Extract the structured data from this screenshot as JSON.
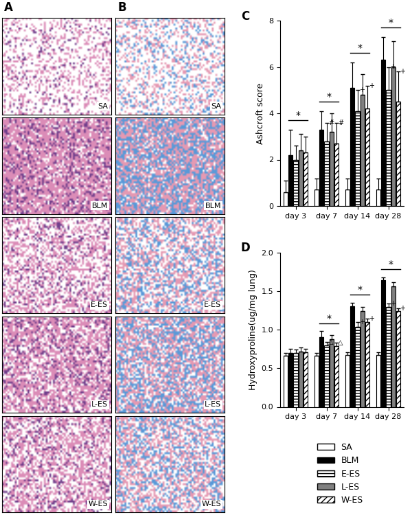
{
  "image_panels": [
    {
      "panel": "A",
      "rows": [
        "SA",
        "BLM",
        "E-ES",
        "L-ES",
        "W-ES"
      ]
    },
    {
      "panel": "B",
      "rows": [
        "SA",
        "BLM",
        "E-ES",
        "L-ES",
        "W-ES"
      ]
    }
  ],
  "chart_data": [
    {
      "type": "bar",
      "panel": "C",
      "ylabel": "Ashcroft score",
      "categories": [
        "day 3",
        "day 7",
        "day 14",
        "day 28"
      ],
      "ylim": [
        0,
        8
      ],
      "yticks": [
        0,
        2,
        4,
        6,
        8
      ],
      "series": [
        {
          "name": "SA",
          "color": "#ffffff",
          "values": [
            0.6,
            0.7,
            0.7,
            0.7
          ],
          "errors": [
            0.5,
            0.5,
            0.5,
            0.5
          ]
        },
        {
          "name": "BLM",
          "color": "#000000",
          "values": [
            2.2,
            3.3,
            5.1,
            6.3
          ],
          "errors": [
            1.1,
            0.8,
            1.1,
            1.0
          ]
        },
        {
          "name": "E-ES",
          "color": "#ffffff",
          "values": [
            2.0,
            2.8,
            4.1,
            5.0
          ],
          "errors": [
            0.6,
            0.8,
            0.9,
            1.0
          ]
        },
        {
          "name": "L-ES",
          "color": "#808080",
          "values": [
            2.4,
            3.2,
            4.8,
            6.0
          ],
          "errors": [
            0.7,
            0.8,
            0.9,
            1.1
          ]
        },
        {
          "name": "W-ES",
          "color": "#ffffff",
          "values": [
            2.3,
            2.7,
            4.2,
            4.5
          ],
          "errors": [
            0.7,
            0.9,
            1.0,
            1.3
          ]
        }
      ],
      "annotations": [
        {
          "text": "*",
          "category": "day 3",
          "series": [
            "BLM",
            "W-ES"
          ]
        },
        {
          "text": "*",
          "category": "day 7",
          "series": [
            "BLM",
            "W-ES"
          ]
        },
        {
          "text": "*",
          "category": "day 14",
          "series": [
            "BLM",
            "W-ES"
          ]
        },
        {
          "text": "*",
          "category": "day 28",
          "series": [
            "BLM",
            "W-ES"
          ]
        },
        {
          "text": "#",
          "category": "day 7",
          "series": "E-ES"
        },
        {
          "text": "#",
          "category": "day 7",
          "series": "W-ES"
        },
        {
          "text": "+",
          "category": "day 14",
          "series": "E-ES"
        },
        {
          "text": "+",
          "category": "day 14",
          "series": "W-ES"
        },
        {
          "text": "+",
          "category": "day 28",
          "series": "E-ES"
        },
        {
          "text": "+",
          "category": "day 28",
          "series": "W-ES"
        }
      ]
    },
    {
      "type": "bar",
      "panel": "D",
      "ylabel": "Hydroxyproline(ug/mg lung)",
      "categories": [
        "day 3",
        "day 7",
        "day 14",
        "day 28"
      ],
      "ylim": [
        0,
        2
      ],
      "yticks": [
        {
          "value": 0,
          "label": "0.0"
        },
        {
          "value": 0.5,
          "label": "0.5"
        },
        {
          "value": 1,
          "label": "1.0"
        },
        {
          "value": 1.5,
          "label": "1.5"
        },
        {
          "value": 2,
          "label": "2.0"
        }
      ],
      "legend": "lower right",
      "series": [
        {
          "name": "SA",
          "color": "#ffffff",
          "values": [
            0.66,
            0.66,
            0.67,
            0.67
          ],
          "errors": [
            0.04,
            0.04,
            0.04,
            0.04
          ]
        },
        {
          "name": "BLM",
          "color": "#000000",
          "values": [
            0.7,
            0.9,
            1.3,
            1.64
          ],
          "errors": [
            0.05,
            0.08,
            0.05,
            0.04
          ]
        },
        {
          "name": "E-ES",
          "color": "#ffffff",
          "values": [
            0.7,
            0.8,
            1.04,
            1.29
          ],
          "errors": [
            0.04,
            0.04,
            0.06,
            0.05
          ]
        },
        {
          "name": "L-ES",
          "color": "#808080",
          "values": [
            0.72,
            0.88,
            1.24,
            1.56
          ],
          "errors": [
            0.05,
            0.05,
            0.05,
            0.05
          ]
        },
        {
          "name": "W-ES",
          "color": "#ffffff",
          "values": [
            0.71,
            0.79,
            1.1,
            1.24
          ],
          "errors": [
            0.04,
            0.04,
            0.04,
            0.04
          ]
        }
      ],
      "annotations": [
        {
          "text": "*",
          "category": "day 7",
          "series": [
            "BLM",
            "W-ES"
          ]
        },
        {
          "text": "*",
          "category": "day 14",
          "series": [
            "BLM",
            "W-ES"
          ]
        },
        {
          "text": "*",
          "category": "day 28",
          "series": [
            "BLM",
            "W-ES"
          ]
        },
        {
          "text": "△",
          "category": "day 7",
          "series": "E-ES"
        },
        {
          "text": "△",
          "category": "day 7",
          "series": "W-ES"
        },
        {
          "text": "+",
          "category": "day 14",
          "series": "E-ES"
        },
        {
          "text": "+",
          "category": "day 14",
          "series": "W-ES"
        },
        {
          "text": "+",
          "category": "day 28",
          "series": "E-ES"
        },
        {
          "text": "+",
          "category": "day 28",
          "series": "W-ES"
        }
      ]
    }
  ]
}
